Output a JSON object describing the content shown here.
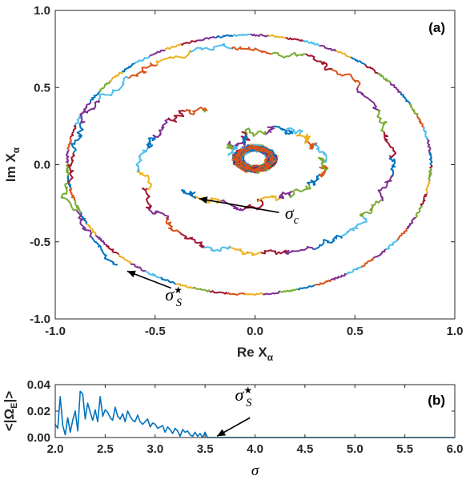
{
  "chart_data": [
    {
      "type": "line",
      "panel_label": "(a)",
      "xlabel": "Re X",
      "xlabel_sub": "α",
      "ylabel": "Im X",
      "ylabel_sub": "α",
      "xlim": [
        -1.0,
        1.0
      ],
      "ylim": [
        -1.0,
        1.0
      ],
      "xticks": [
        "-1.0",
        "-0.5",
        "0.0",
        "0.5",
        "1.0"
      ],
      "yticks": [
        "-1.0",
        "-0.5",
        "0.0",
        "0.5",
        "1.0"
      ],
      "grid": false,
      "series_colors": [
        "#0072BD",
        "#D95319",
        "#EDB120",
        "#7E2F8E",
        "#77AC30",
        "#4DBEEE",
        "#A2142F"
      ],
      "trajectories": {
        "outer_ring": {
          "center": [
            -0.03,
            0.0
          ],
          "radius_x": 0.91,
          "radius_y": 0.84
        },
        "spiral": {
          "start": [
            -0.68,
            -0.67
          ],
          "end": [
            -0.33,
            -0.19
          ],
          "turns": 1.3
        },
        "inner_spiral": {
          "start": [
            -0.33,
            -0.19
          ],
          "end": [
            0.02,
            0.06
          ],
          "turns": 1.0
        },
        "central_tangle": {
          "center": [
            0.0,
            0.04
          ],
          "radius": 0.1
        }
      },
      "annotations": [
        {
          "label_base": "σ",
          "label_sub": "c",
          "label_sup": "",
          "text_at": [
            0.15,
            -0.35
          ],
          "arrow_from": [
            0.12,
            -0.31
          ],
          "arrow_to": [
            -0.28,
            -0.22
          ]
        },
        {
          "label_base": "σ",
          "label_sub": "S",
          "label_sup": "★",
          "text_at": [
            -0.45,
            -0.88
          ],
          "arrow_from": [
            -0.42,
            -0.8
          ],
          "arrow_to": [
            -0.64,
            -0.69
          ]
        }
      ]
    },
    {
      "type": "line",
      "panel_label": "(b)",
      "xlabel": "σ",
      "ylabel": "<|Ω",
      "ylabel_sub": "E",
      "ylabel_end": "|>",
      "xlim": [
        2.0,
        6.0
      ],
      "ylim": [
        0.0,
        0.04
      ],
      "xticks": [
        "2.0",
        "2.5",
        "3.0",
        "3.5",
        "4.0",
        "4.5",
        "5.0",
        "5.5",
        "6.0"
      ],
      "yticks": [
        "0.00",
        "0.02",
        "0.04"
      ],
      "series_color": "#0072BD",
      "x": [
        2.0,
        2.025,
        2.05,
        2.075,
        2.1,
        2.125,
        2.15,
        2.175,
        2.2,
        2.225,
        2.25,
        2.275,
        2.3,
        2.325,
        2.35,
        2.375,
        2.4,
        2.425,
        2.45,
        2.475,
        2.5,
        2.525,
        2.55,
        2.575,
        2.6,
        2.625,
        2.65,
        2.675,
        2.7,
        2.725,
        2.75,
        2.775,
        2.8,
        2.825,
        2.85,
        2.875,
        2.9,
        2.925,
        2.95,
        2.975,
        3.0,
        3.025,
        3.05,
        3.075,
        3.1,
        3.125,
        3.15,
        3.175,
        3.2,
        3.225,
        3.25,
        3.275,
        3.3,
        3.325,
        3.35,
        3.375,
        3.4,
        3.425,
        3.45,
        3.475,
        3.5,
        3.525,
        3.55,
        3.575,
        3.6,
        3.65,
        3.7,
        4.0,
        4.5,
        5.0,
        5.5,
        6.0
      ],
      "y": [
        0.01,
        0.007,
        0.031,
        0.009,
        0.002,
        0.015,
        0.004,
        0.013,
        0.02,
        0.005,
        0.035,
        0.033,
        0.014,
        0.026,
        0.019,
        0.013,
        0.021,
        0.012,
        0.031,
        0.016,
        0.021,
        0.019,
        0.015,
        0.013,
        0.023,
        0.016,
        0.014,
        0.018,
        0.012,
        0.02,
        0.016,
        0.013,
        0.012,
        0.017,
        0.012,
        0.01,
        0.012,
        0.014,
        0.008,
        0.011,
        0.01,
        0.007,
        0.008,
        0.009,
        0.004,
        0.008,
        0.006,
        0.003,
        0.007,
        0.005,
        0.001,
        0.006,
        0.004,
        0.005,
        0.002,
        0.001,
        0.004,
        0.001,
        0.003,
        0.0,
        0.004,
        0.0,
        0.0,
        0.0,
        0.0,
        0.0,
        0.0,
        0.0,
        0.0,
        0.0,
        0.0,
        0.0
      ],
      "annotations": [
        {
          "label_base": "σ",
          "label_sub": "S",
          "label_sup": "★",
          "text_at": [
            3.8,
            0.028
          ],
          "arrow_from": [
            3.95,
            0.015
          ],
          "arrow_to": [
            3.62,
            0.001
          ]
        }
      ]
    }
  ]
}
